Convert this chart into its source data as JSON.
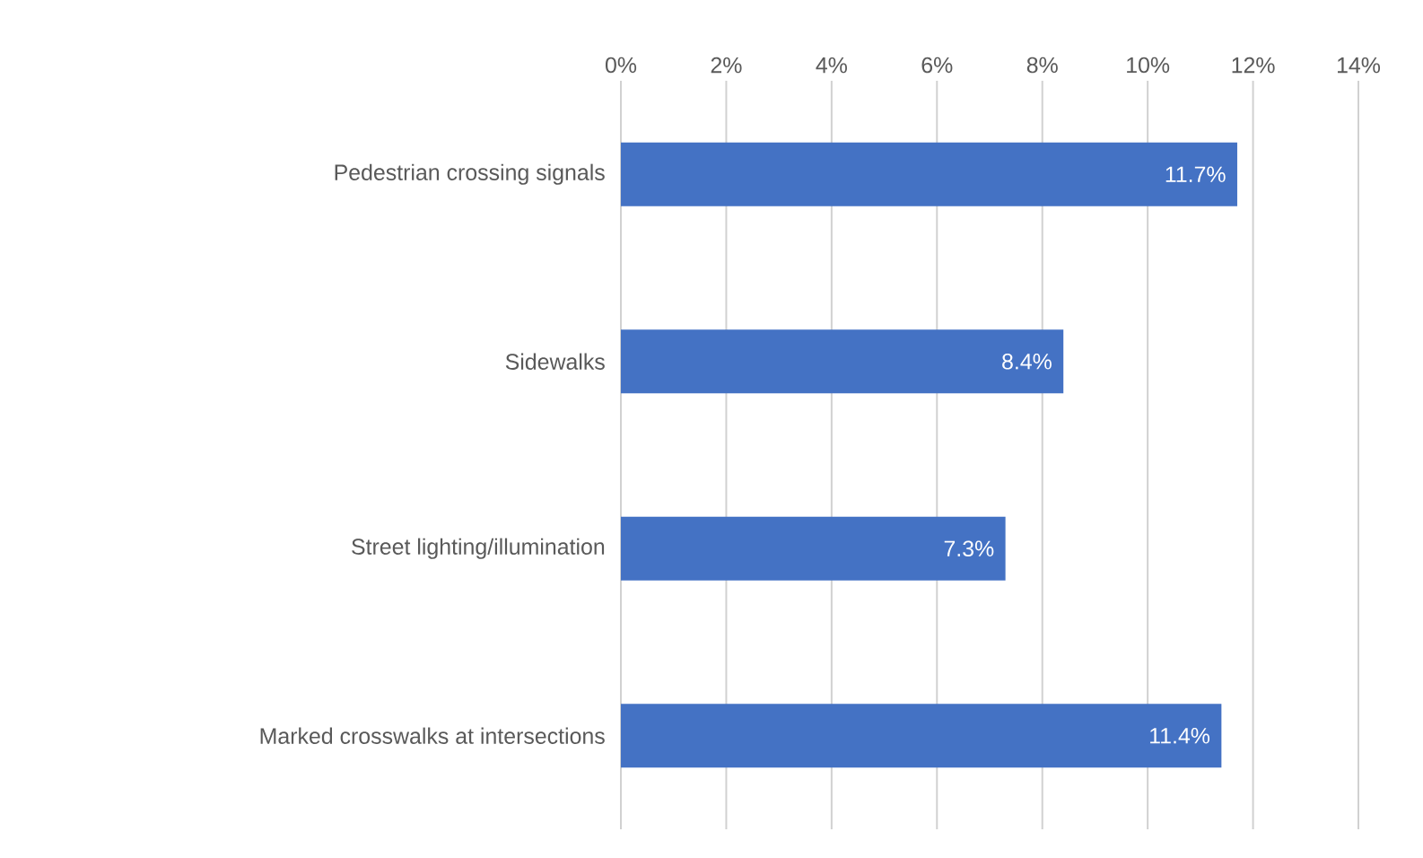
{
  "chart_data": {
    "type": "bar",
    "orientation": "horizontal",
    "categories": [
      "Pedestrian crossing signals",
      "Sidewalks",
      "Street lighting/illumination",
      "Marked crosswalks at intersections"
    ],
    "values": [
      11.7,
      8.4,
      7.3,
      11.4
    ],
    "value_labels": [
      "11.7%",
      "8.4%",
      "7.3%",
      "11.4%"
    ],
    "color": "#4472c4",
    "xlim": [
      0,
      14
    ],
    "xticks": [
      {
        "value": 0,
        "label": "0%"
      },
      {
        "value": 2,
        "label": "2%"
      },
      {
        "value": 4,
        "label": "4%"
      },
      {
        "value": 6,
        "label": "6%"
      },
      {
        "value": 8,
        "label": "8%"
      },
      {
        "value": 10,
        "label": "10%"
      },
      {
        "value": 12,
        "label": "12%"
      },
      {
        "value": 14,
        "label": "14%"
      }
    ],
    "grid": "x"
  }
}
